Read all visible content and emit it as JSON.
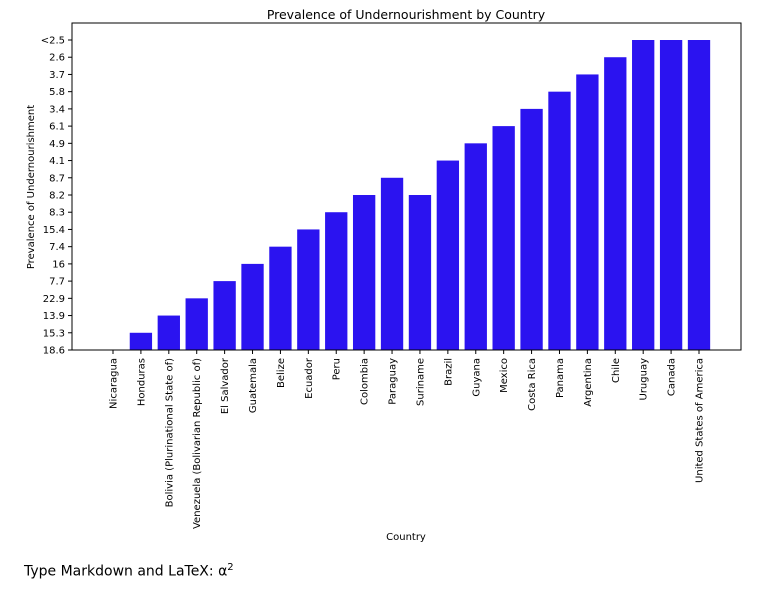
{
  "colors": {
    "bar": "#2b13f0",
    "axis": "#000000",
    "background": "#ffffff"
  },
  "chart_data": {
    "type": "bar",
    "title": "Prevalence of Undernourishment by Country",
    "xlabel": "Country",
    "ylabel": "Prevalence of Undernourishment",
    "y_axis_kind": "categorical",
    "ytick_labels": [
      "18.6",
      "15.3",
      "13.9",
      "22.9",
      "7.7",
      "16",
      "7.4",
      "15.4",
      "8.3",
      "8.2",
      "8.7",
      "4.1",
      "4.9",
      "6.1",
      "3.4",
      "5.8",
      "3.7",
      "2.6",
      "<2.5"
    ],
    "categories": [
      "Nicaragua",
      "Honduras",
      "Bolivia (Plurinational State of)",
      "Venezuela (Bolivarian Republic of)",
      "El Salvador",
      "Guatemala",
      "Belize",
      "Ecuador",
      "Peru",
      "Colombia",
      "Paraguay",
      "Suriname",
      "Brazil",
      "Guyana",
      "Mexico",
      "Costa Rica",
      "Panama",
      "Argentina",
      "Chile",
      "Uruguay",
      "Canada",
      "United States of America"
    ],
    "values": [
      "18.6",
      "15.3",
      "13.9",
      "22.9",
      "7.7",
      "16",
      "7.4",
      "15.4",
      "8.3",
      "8.2",
      "8.7",
      "8.2",
      "4.1",
      "4.9",
      "6.1",
      "3.4",
      "5.8",
      "3.7",
      "2.6",
      "<2.5",
      "<2.5",
      "<2.5"
    ],
    "grid": false,
    "legend": false
  },
  "markdown_cell": {
    "text": "Type Markdown and LaTeX: α",
    "superscript": "2"
  }
}
